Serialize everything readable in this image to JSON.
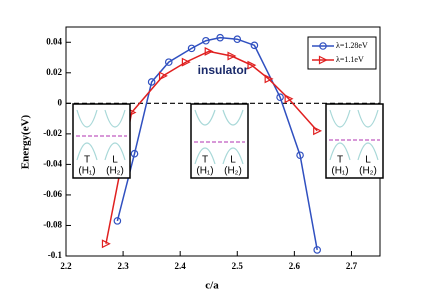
{
  "chart_data": {
    "type": "line",
    "xlabel": "c/a",
    "ylabel": "Energy(eV)",
    "annotation": "insulator",
    "xlim": [
      2.2,
      2.75
    ],
    "xticks": [
      2.2,
      2.3,
      2.4,
      2.5,
      2.6,
      2.7
    ],
    "ylim": [
      -0.1,
      0.05
    ],
    "yticks": [
      -0.1,
      -0.08,
      -0.06,
      -0.04,
      -0.02,
      0,
      0.02,
      0.04
    ],
    "hline": 0,
    "legend": "upper right",
    "series": [
      {
        "name": "λ=1.28eV",
        "color": "#3050c0",
        "marker": "circle",
        "x": [
          2.29,
          2.32,
          2.35,
          2.38,
          2.42,
          2.445,
          2.47,
          2.5,
          2.53,
          2.575,
          2.61,
          2.64
        ],
        "values": [
          -0.077,
          -0.033,
          0.014,
          0.027,
          0.036,
          0.041,
          0.043,
          0.042,
          0.038,
          0.004,
          -0.034,
          -0.096
        ]
      },
      {
        "name": "λ=1.1eV",
        "color": "#e02020",
        "marker": "triangle",
        "x": [
          2.27,
          2.315,
          2.37,
          2.41,
          2.45,
          2.49,
          2.525,
          2.555,
          2.59,
          2.64
        ],
        "values": [
          -0.092,
          -0.006,
          0.018,
          0.027,
          0.034,
          0.031,
          0.025,
          0.016,
          0.003,
          -0.018
        ]
      }
    ],
    "insets": [
      {
        "labels": [
          "T",
          "L",
          "(H₁)",
          "(H₂)"
        ]
      },
      {
        "labels": [
          "T",
          "L",
          "(H₁)",
          "(H₂)"
        ]
      },
      {
        "labels": [
          "T",
          "L",
          "(H₁)",
          "(H₂)"
        ]
      }
    ]
  }
}
